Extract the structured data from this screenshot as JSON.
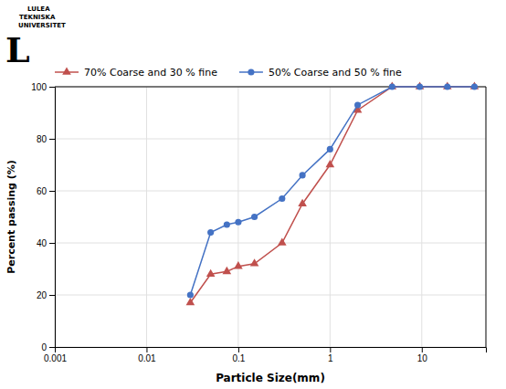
{
  "chart_data": {
    "type": "line",
    "x_label": "Particle Size(mm)",
    "y_label": "Percent passing  (%)",
    "annotations": [
      "L",
      "LULEA",
      "TEKNISKA",
      "UNIVERSITET"
    ],
    "x": [
      0.03,
      0.05,
      0.075,
      0.1,
      0.15,
      0.3,
      0.5,
      1.0,
      2.0,
      4.75,
      9.5,
      19.0,
      37.5
    ],
    "series": [
      {
        "name": "70% Coarse and 30 % fine",
        "color": "#C0504D",
        "marker": "triangle",
        "values": [
          17,
          28,
          29,
          31,
          32,
          40,
          55,
          70,
          91,
          100,
          100,
          100,
          100
        ]
      },
      {
        "name": "50% Coarse and 50 % fine",
        "color": "#4472C4",
        "marker": "circle",
        "values": [
          20,
          44,
          47,
          48,
          50,
          57,
          66,
          76,
          93,
          100,
          100,
          100,
          100
        ]
      }
    ],
    "log": "x",
    "xlim": [
      0.001,
      50
    ],
    "xticks": [
      0.001,
      0.01,
      0.1,
      1,
      10
    ],
    "ylim": [
      0,
      100
    ],
    "yticks": [
      0,
      20,
      40,
      60,
      80,
      100
    ],
    "grid": true,
    "legend": "top"
  }
}
